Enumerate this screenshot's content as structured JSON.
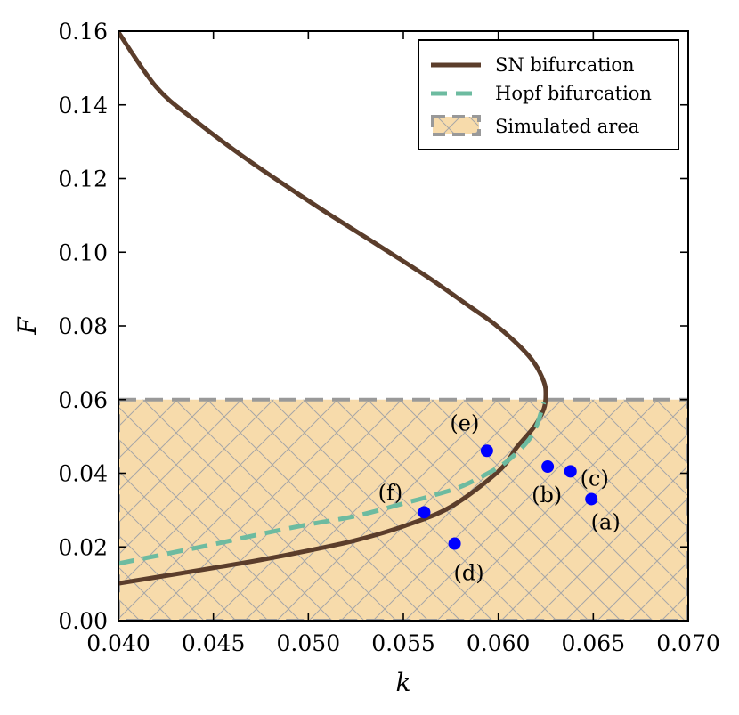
{
  "chart_data": {
    "type": "line",
    "xlabel": "k",
    "ylabel": "F",
    "xlim": [
      0.04,
      0.07
    ],
    "ylim": [
      0.0,
      0.16
    ],
    "x_ticks": [
      0.04,
      0.045,
      0.05,
      0.055,
      0.06,
      0.065,
      0.07
    ],
    "x_tick_labels": [
      "0.040",
      "0.045",
      "0.050",
      "0.055",
      "0.060",
      "0.065",
      "0.070"
    ],
    "y_ticks": [
      0.0,
      0.02,
      0.04,
      0.06,
      0.08,
      0.1,
      0.12,
      0.14,
      0.16
    ],
    "y_tick_labels": [
      "0.00",
      "0.02",
      "0.04",
      "0.06",
      "0.08",
      "0.10",
      "0.12",
      "0.14",
      "0.16"
    ],
    "grid": false,
    "legend_position": "top-right",
    "colors": {
      "sn": "#5b3d2b",
      "hopf": "#6dbba0",
      "area_fill": "#f7dbab",
      "area_border": "#999999",
      "points": "#0000ff"
    },
    "series": [
      {
        "name": "SN bifurcation",
        "style": "solid",
        "x": [
          0.04,
          0.0425,
          0.045,
          0.0475,
          0.05,
          0.0525,
          0.055,
          0.0575,
          0.06,
          0.061,
          0.0619,
          0.0624,
          0.0625,
          0.0624,
          0.0619,
          0.0611,
          0.0598,
          0.0584,
          0.0565,
          0.0548,
          0.053,
          0.051,
          0.049,
          0.0465,
          0.044,
          0.042,
          0.04
        ],
        "y": [
          0.0101,
          0.0122,
          0.0143,
          0.0165,
          0.019,
          0.0218,
          0.0256,
          0.0309,
          0.0405,
          0.0472,
          0.0527,
          0.0575,
          0.0614,
          0.0648,
          0.0699,
          0.0746,
          0.0805,
          0.0856,
          0.0925,
          0.0982,
          0.1041,
          0.1106,
          0.1174,
          0.1262,
          0.1359,
          0.1448,
          0.1597
        ]
      },
      {
        "name": "Hopf bifurcation",
        "style": "dashed",
        "x": [
          0.04,
          0.0425,
          0.045,
          0.0475,
          0.05,
          0.0525,
          0.055,
          0.0565,
          0.058,
          0.0595,
          0.0605,
          0.0615,
          0.062,
          0.0624
        ],
        "y": [
          0.0155,
          0.0181,
          0.0207,
          0.0235,
          0.0261,
          0.0284,
          0.0318,
          0.0339,
          0.0363,
          0.0401,
          0.0434,
          0.0484,
          0.0527,
          0.0592
        ]
      }
    ],
    "area": {
      "name": "Simulated area",
      "x_range": [
        0.04,
        0.07
      ],
      "y_range": [
        0.0,
        0.06
      ]
    },
    "points": [
      {
        "label": "(a)",
        "x": 0.0649,
        "y": 0.033
      },
      {
        "label": "(b)",
        "x": 0.0626,
        "y": 0.0418
      },
      {
        "label": "(c)",
        "x": 0.0638,
        "y": 0.0405
      },
      {
        "label": "(d)",
        "x": 0.0577,
        "y": 0.0209
      },
      {
        "label": "(e)",
        "x": 0.0594,
        "y": 0.0461
      },
      {
        "label": "(f)",
        "x": 0.0561,
        "y": 0.0294
      }
    ]
  }
}
